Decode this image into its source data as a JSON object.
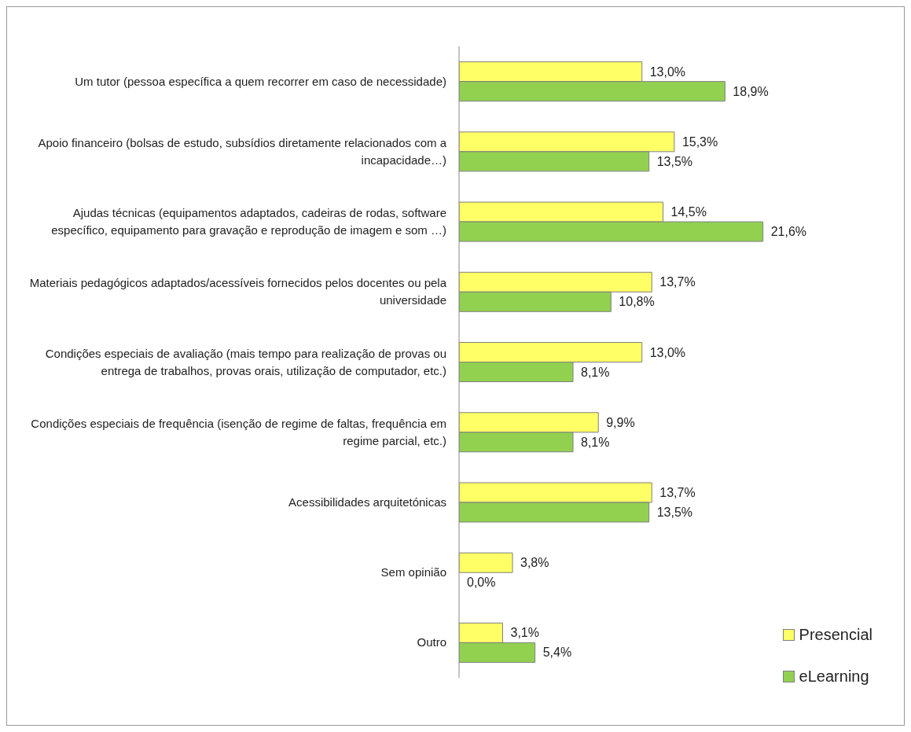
{
  "chart_data": {
    "type": "bar",
    "orientation": "horizontal",
    "categories": [
      "Um tutor (pessoa específica a quem recorrer em caso de necessidade)",
      "Apoio financeiro (bolsas de estudo, subsídios diretamente relacionados com a incapacidade…)",
      "Ajudas técnicas (equipamentos adaptados, cadeiras de rodas, software específico, equipamento para gravação e reprodução de imagem e som …)",
      "Materiais pedagógicos adaptados/acessíveis fornecidos pelos docentes ou pela universidade",
      "Condições especiais de avaliação (mais tempo para realização de provas ou entrega de trabalhos, provas orais, utilização de computador, etc.)",
      "Condições especiais de frequência (isenção de regime de faltas, frequência em regime parcial, etc.)",
      "Acessibilidades arquitetónicas",
      "Sem opinião",
      "Outro"
    ],
    "series": [
      {
        "name": "Presencial",
        "color": "#ffff66",
        "values": [
          13.0,
          15.3,
          14.5,
          13.7,
          13.0,
          9.9,
          13.7,
          3.8,
          3.1
        ],
        "value_labels": [
          "13,0%",
          "15,3%",
          "14,5%",
          "13,7%",
          "13,0%",
          "9,9%",
          "13,7%",
          "3,8%",
          "3,1%"
        ]
      },
      {
        "name": "eLearning",
        "color": "#92d050",
        "values": [
          18.9,
          13.5,
          21.6,
          10.8,
          8.1,
          8.1,
          13.5,
          0.0,
          5.4
        ],
        "value_labels": [
          "18,9%",
          "13,5%",
          "21,6%",
          "10,8%",
          "8,1%",
          "8,1%",
          "13,5%",
          "0,0%",
          "5,4%"
        ]
      }
    ],
    "legend": "bottom right",
    "grid": false
  }
}
